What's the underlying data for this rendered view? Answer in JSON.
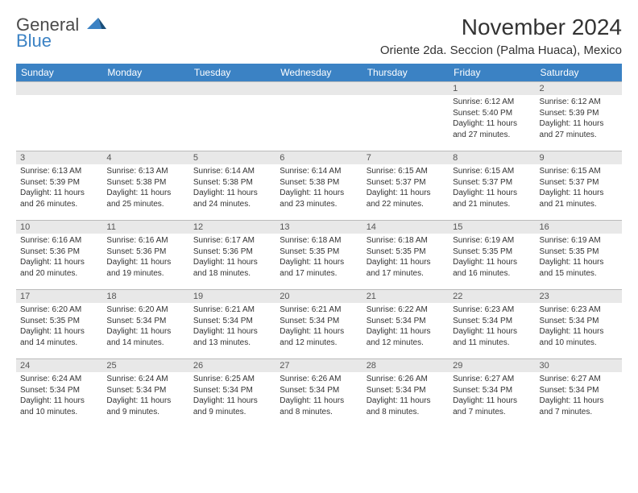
{
  "logo": {
    "line1": "General",
    "line2": "Blue"
  },
  "title": "November 2024",
  "location": "Oriente 2da. Seccion (Palma Huaca), Mexico",
  "colors": {
    "headerBg": "#3b82c4",
    "dayNumBg": "#e8e8e8",
    "border": "#bbbbbb",
    "text": "#333333"
  },
  "weekdays": [
    "Sunday",
    "Monday",
    "Tuesday",
    "Wednesday",
    "Thursday",
    "Friday",
    "Saturday"
  ],
  "weeks": [
    [
      {
        "n": "",
        "sr": "",
        "ss": "",
        "dl": ""
      },
      {
        "n": "",
        "sr": "",
        "ss": "",
        "dl": ""
      },
      {
        "n": "",
        "sr": "",
        "ss": "",
        "dl": ""
      },
      {
        "n": "",
        "sr": "",
        "ss": "",
        "dl": ""
      },
      {
        "n": "",
        "sr": "",
        "ss": "",
        "dl": ""
      },
      {
        "n": "1",
        "sr": "Sunrise: 6:12 AM",
        "ss": "Sunset: 5:40 PM",
        "dl": "Daylight: 11 hours and 27 minutes."
      },
      {
        "n": "2",
        "sr": "Sunrise: 6:12 AM",
        "ss": "Sunset: 5:39 PM",
        "dl": "Daylight: 11 hours and 27 minutes."
      }
    ],
    [
      {
        "n": "3",
        "sr": "Sunrise: 6:13 AM",
        "ss": "Sunset: 5:39 PM",
        "dl": "Daylight: 11 hours and 26 minutes."
      },
      {
        "n": "4",
        "sr": "Sunrise: 6:13 AM",
        "ss": "Sunset: 5:38 PM",
        "dl": "Daylight: 11 hours and 25 minutes."
      },
      {
        "n": "5",
        "sr": "Sunrise: 6:14 AM",
        "ss": "Sunset: 5:38 PM",
        "dl": "Daylight: 11 hours and 24 minutes."
      },
      {
        "n": "6",
        "sr": "Sunrise: 6:14 AM",
        "ss": "Sunset: 5:38 PM",
        "dl": "Daylight: 11 hours and 23 minutes."
      },
      {
        "n": "7",
        "sr": "Sunrise: 6:15 AM",
        "ss": "Sunset: 5:37 PM",
        "dl": "Daylight: 11 hours and 22 minutes."
      },
      {
        "n": "8",
        "sr": "Sunrise: 6:15 AM",
        "ss": "Sunset: 5:37 PM",
        "dl": "Daylight: 11 hours and 21 minutes."
      },
      {
        "n": "9",
        "sr": "Sunrise: 6:15 AM",
        "ss": "Sunset: 5:37 PM",
        "dl": "Daylight: 11 hours and 21 minutes."
      }
    ],
    [
      {
        "n": "10",
        "sr": "Sunrise: 6:16 AM",
        "ss": "Sunset: 5:36 PM",
        "dl": "Daylight: 11 hours and 20 minutes."
      },
      {
        "n": "11",
        "sr": "Sunrise: 6:16 AM",
        "ss": "Sunset: 5:36 PM",
        "dl": "Daylight: 11 hours and 19 minutes."
      },
      {
        "n": "12",
        "sr": "Sunrise: 6:17 AM",
        "ss": "Sunset: 5:36 PM",
        "dl": "Daylight: 11 hours and 18 minutes."
      },
      {
        "n": "13",
        "sr": "Sunrise: 6:18 AM",
        "ss": "Sunset: 5:35 PM",
        "dl": "Daylight: 11 hours and 17 minutes."
      },
      {
        "n": "14",
        "sr": "Sunrise: 6:18 AM",
        "ss": "Sunset: 5:35 PM",
        "dl": "Daylight: 11 hours and 17 minutes."
      },
      {
        "n": "15",
        "sr": "Sunrise: 6:19 AM",
        "ss": "Sunset: 5:35 PM",
        "dl": "Daylight: 11 hours and 16 minutes."
      },
      {
        "n": "16",
        "sr": "Sunrise: 6:19 AM",
        "ss": "Sunset: 5:35 PM",
        "dl": "Daylight: 11 hours and 15 minutes."
      }
    ],
    [
      {
        "n": "17",
        "sr": "Sunrise: 6:20 AM",
        "ss": "Sunset: 5:35 PM",
        "dl": "Daylight: 11 hours and 14 minutes."
      },
      {
        "n": "18",
        "sr": "Sunrise: 6:20 AM",
        "ss": "Sunset: 5:34 PM",
        "dl": "Daylight: 11 hours and 14 minutes."
      },
      {
        "n": "19",
        "sr": "Sunrise: 6:21 AM",
        "ss": "Sunset: 5:34 PM",
        "dl": "Daylight: 11 hours and 13 minutes."
      },
      {
        "n": "20",
        "sr": "Sunrise: 6:21 AM",
        "ss": "Sunset: 5:34 PM",
        "dl": "Daylight: 11 hours and 12 minutes."
      },
      {
        "n": "21",
        "sr": "Sunrise: 6:22 AM",
        "ss": "Sunset: 5:34 PM",
        "dl": "Daylight: 11 hours and 12 minutes."
      },
      {
        "n": "22",
        "sr": "Sunrise: 6:23 AM",
        "ss": "Sunset: 5:34 PM",
        "dl": "Daylight: 11 hours and 11 minutes."
      },
      {
        "n": "23",
        "sr": "Sunrise: 6:23 AM",
        "ss": "Sunset: 5:34 PM",
        "dl": "Daylight: 11 hours and 10 minutes."
      }
    ],
    [
      {
        "n": "24",
        "sr": "Sunrise: 6:24 AM",
        "ss": "Sunset: 5:34 PM",
        "dl": "Daylight: 11 hours and 10 minutes."
      },
      {
        "n": "25",
        "sr": "Sunrise: 6:24 AM",
        "ss": "Sunset: 5:34 PM",
        "dl": "Daylight: 11 hours and 9 minutes."
      },
      {
        "n": "26",
        "sr": "Sunrise: 6:25 AM",
        "ss": "Sunset: 5:34 PM",
        "dl": "Daylight: 11 hours and 9 minutes."
      },
      {
        "n": "27",
        "sr": "Sunrise: 6:26 AM",
        "ss": "Sunset: 5:34 PM",
        "dl": "Daylight: 11 hours and 8 minutes."
      },
      {
        "n": "28",
        "sr": "Sunrise: 6:26 AM",
        "ss": "Sunset: 5:34 PM",
        "dl": "Daylight: 11 hours and 8 minutes."
      },
      {
        "n": "29",
        "sr": "Sunrise: 6:27 AM",
        "ss": "Sunset: 5:34 PM",
        "dl": "Daylight: 11 hours and 7 minutes."
      },
      {
        "n": "30",
        "sr": "Sunrise: 6:27 AM",
        "ss": "Sunset: 5:34 PM",
        "dl": "Daylight: 11 hours and 7 minutes."
      }
    ]
  ]
}
